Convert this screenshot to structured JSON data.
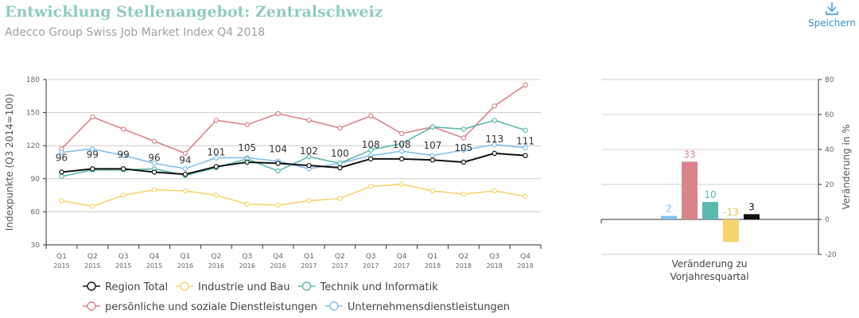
{
  "header": {
    "title": "Entwicklung Stellenangebot: Zentralschweiz",
    "subtitle": "Adecco Group Swiss Job Market Index Q4 2018",
    "save_label": "Speichern",
    "save_icon": "download-icon",
    "title_color": "#8ecbc2"
  },
  "chart_data": [
    {
      "type": "line",
      "ylabel": "Indexpunkte (Q3 2014=100)",
      "ylim": [
        30,
        180
      ],
      "yticks": [
        30,
        60,
        90,
        120,
        150,
        180
      ],
      "grid": true,
      "categories": [
        [
          "Q1",
          "2015"
        ],
        [
          "Q2",
          "2015"
        ],
        [
          "Q3",
          "2015"
        ],
        [
          "Q4",
          "2015"
        ],
        [
          "Q1",
          "2016"
        ],
        [
          "Q2",
          "2016"
        ],
        [
          "Q3",
          "2016"
        ],
        [
          "Q4",
          "2016"
        ],
        [
          "Q1",
          "2017"
        ],
        [
          "Q2",
          "2017"
        ],
        [
          "Q3",
          "2017"
        ],
        [
          "Q4",
          "2017"
        ],
        [
          "Q1",
          "2018"
        ],
        [
          "Q2",
          "2018"
        ],
        [
          "Q3",
          "2018"
        ],
        [
          "Q4",
          "2018"
        ]
      ],
      "legend_position": "bottom",
      "series": [
        {
          "name": "persönliche und soziale Dienstleistungen",
          "color": "#d9838a",
          "values": [
            117,
            146,
            135,
            124,
            113,
            143,
            139,
            149,
            143,
            136,
            147,
            131,
            137,
            127,
            156,
            175
          ]
        },
        {
          "name": "Unternehmensdienstleistungen",
          "color": "#85bde8",
          "values": [
            114,
            117,
            111,
            104,
            99,
            109,
            109,
            106,
            99,
            104,
            111,
            115,
            111,
            116,
            121,
            118
          ]
        },
        {
          "name": "Technik und Informatik",
          "color": "#5bb8ae",
          "values": [
            92,
            98,
            98,
            99,
            93,
            100,
            108,
            97,
            110,
            104,
            116,
            122,
            137,
            135,
            143,
            134
          ]
        },
        {
          "name": "Industrie und Bau",
          "color": "#f5d46e",
          "values": [
            70,
            65,
            75,
            80,
            79,
            75,
            67,
            66,
            70,
            72,
            83,
            85,
            79,
            76,
            79,
            74
          ]
        },
        {
          "name": "Region Total",
          "color": "#111111",
          "labels": true,
          "values": [
            96,
            99,
            99,
            96,
            94,
            101,
            105,
            104,
            102,
            100,
            108,
            108,
            107,
            105,
            113,
            111
          ]
        }
      ],
      "legend": [
        {
          "name": "Region Total",
          "color": "#111111"
        },
        {
          "name": "Industrie und Bau",
          "color": "#f5d46e"
        },
        {
          "name": "Technik und Informatik",
          "color": "#5bb8ae"
        },
        {
          "name": "persönliche und soziale Dienstleistungen",
          "color": "#d9838a"
        },
        {
          "name": "Unternehmensdienstleistungen",
          "color": "#85bde8"
        }
      ]
    },
    {
      "type": "bar",
      "xlabel": [
        "Veränderung zu",
        "Vorjahresquartal"
      ],
      "ylabel": "Veränderung in %",
      "ylim": [
        -20,
        80
      ],
      "yticks": [
        -20,
        0,
        20,
        40,
        60,
        80
      ],
      "grid": true,
      "bars": [
        {
          "series": "Unternehmensdienstleistungen",
          "value": 2,
          "color": "#85bde8"
        },
        {
          "series": "persönliche und soziale Dienstleistungen",
          "value": 33,
          "color": "#d9838a"
        },
        {
          "series": "Technik und Informatik",
          "value": 10,
          "color": "#5bb8ae"
        },
        {
          "series": "Industrie und Bau",
          "value": -13,
          "color": "#f5d46e"
        },
        {
          "series": "Region Total",
          "value": 3,
          "color": "#111111"
        }
      ]
    }
  ]
}
